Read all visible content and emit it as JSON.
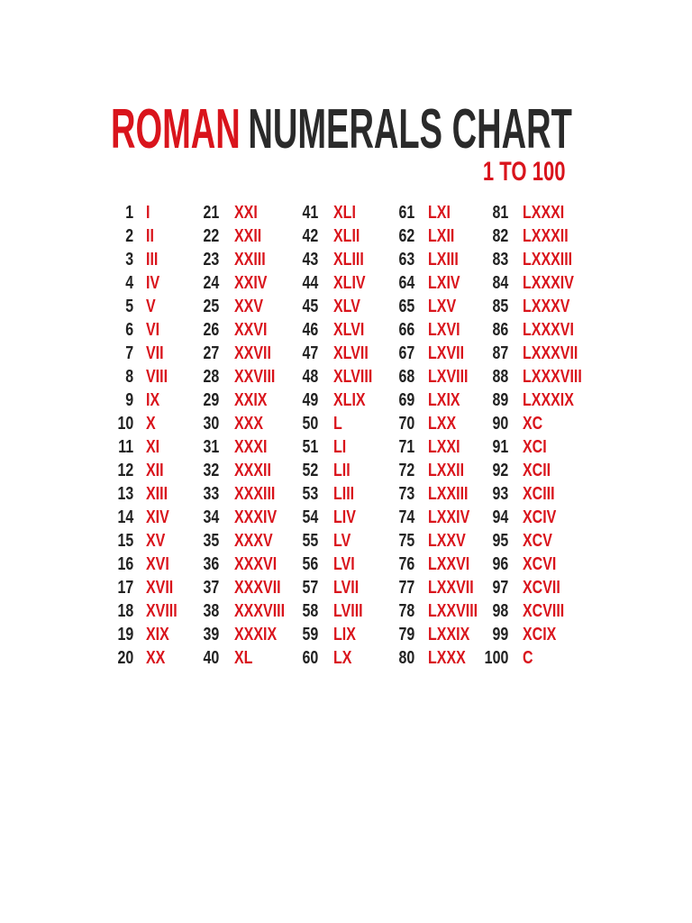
{
  "title": {
    "highlight": "ROMAN",
    "rest": "NUMERALS CHART"
  },
  "subtitle": "1 TO 100",
  "table": {
    "columns": [
      [
        [
          1,
          "I"
        ],
        [
          2,
          "II"
        ],
        [
          3,
          "III"
        ],
        [
          4,
          "IV"
        ],
        [
          5,
          "V"
        ],
        [
          6,
          "VI"
        ],
        [
          7,
          "VII"
        ],
        [
          8,
          "VIII"
        ],
        [
          9,
          "IX"
        ],
        [
          10,
          "X"
        ],
        [
          11,
          "XI"
        ],
        [
          12,
          "XII"
        ],
        [
          13,
          "XIII"
        ],
        [
          14,
          "XIV"
        ],
        [
          15,
          "XV"
        ],
        [
          16,
          "XVI"
        ],
        [
          17,
          "XVII"
        ],
        [
          18,
          "XVIII"
        ],
        [
          19,
          "XIX"
        ],
        [
          20,
          "XX"
        ]
      ],
      [
        [
          21,
          "XXI"
        ],
        [
          22,
          "XXII"
        ],
        [
          23,
          "XXIII"
        ],
        [
          24,
          "XXIV"
        ],
        [
          25,
          "XXV"
        ],
        [
          26,
          "XXVI"
        ],
        [
          27,
          "XXVII"
        ],
        [
          28,
          "XXVIII"
        ],
        [
          29,
          "XXIX"
        ],
        [
          30,
          "XXX"
        ],
        [
          31,
          "XXXI"
        ],
        [
          32,
          "XXXII"
        ],
        [
          33,
          "XXXIII"
        ],
        [
          34,
          "XXXIV"
        ],
        [
          35,
          "XXXV"
        ],
        [
          36,
          "XXXVI"
        ],
        [
          37,
          "XXXVII"
        ],
        [
          38,
          "XXXVIII"
        ],
        [
          39,
          "XXXIX"
        ],
        [
          40,
          "XL"
        ]
      ],
      [
        [
          41,
          "XLI"
        ],
        [
          42,
          "XLII"
        ],
        [
          43,
          "XLIII"
        ],
        [
          44,
          "XLIV"
        ],
        [
          45,
          "XLV"
        ],
        [
          46,
          "XLVI"
        ],
        [
          47,
          "XLVII"
        ],
        [
          48,
          "XLVIII"
        ],
        [
          49,
          "XLIX"
        ],
        [
          50,
          "L"
        ],
        [
          51,
          "LI"
        ],
        [
          52,
          "LII"
        ],
        [
          53,
          "LIII"
        ],
        [
          54,
          "LIV"
        ],
        [
          55,
          "LV"
        ],
        [
          56,
          "LVI"
        ],
        [
          57,
          "LVII"
        ],
        [
          58,
          "LVIII"
        ],
        [
          59,
          "LIX"
        ],
        [
          60,
          "LX"
        ]
      ],
      [
        [
          61,
          "LXI"
        ],
        [
          62,
          "LXII"
        ],
        [
          63,
          "LXIII"
        ],
        [
          64,
          "LXIV"
        ],
        [
          65,
          "LXV"
        ],
        [
          66,
          "LXVI"
        ],
        [
          67,
          "LXVII"
        ],
        [
          68,
          "LXVIII"
        ],
        [
          69,
          "LXIX"
        ],
        [
          70,
          "LXX"
        ],
        [
          71,
          "LXXI"
        ],
        [
          72,
          "LXXII"
        ],
        [
          73,
          "LXXIII"
        ],
        [
          74,
          "LXXIV"
        ],
        [
          75,
          "LXXV"
        ],
        [
          76,
          "LXXVI"
        ],
        [
          77,
          "LXXVII"
        ],
        [
          78,
          "LXXVIII"
        ],
        [
          79,
          "LXXIX"
        ],
        [
          80,
          "LXXX"
        ]
      ],
      [
        [
          81,
          "LXXXI"
        ],
        [
          82,
          "LXXXII"
        ],
        [
          83,
          "LXXXIII"
        ],
        [
          84,
          "LXXXIV"
        ],
        [
          85,
          "LXXXV"
        ],
        [
          86,
          "LXXXVI"
        ],
        [
          87,
          "LXXXVII"
        ],
        [
          88,
          "LXXXVIII"
        ],
        [
          89,
          "LXXXIX"
        ],
        [
          90,
          "XC"
        ],
        [
          91,
          "XCI"
        ],
        [
          92,
          "XCII"
        ],
        [
          93,
          "XCIII"
        ],
        [
          94,
          "XCIV"
        ],
        [
          95,
          "XCV"
        ],
        [
          96,
          "XCVI"
        ],
        [
          97,
          "XCVII"
        ],
        [
          98,
          "XCVIII"
        ],
        [
          99,
          "XCIX"
        ],
        [
          100,
          "C"
        ]
      ]
    ]
  }
}
